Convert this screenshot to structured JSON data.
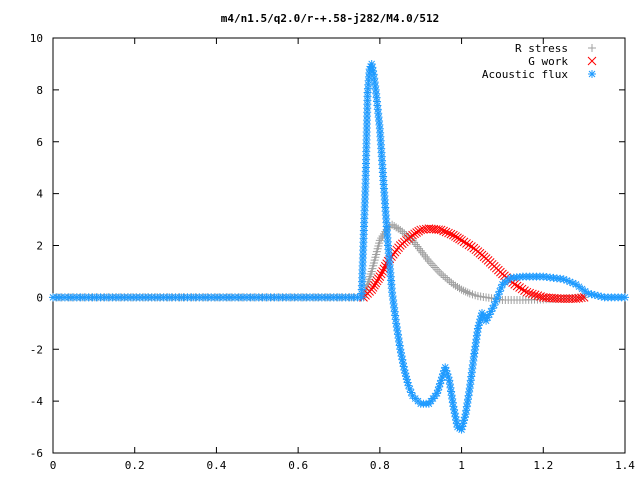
{
  "chart_data": {
    "type": "scatter",
    "title": "m4/n1.5/q2.0/r-+.58-j282/M4.0/512",
    "xlabel": "",
    "ylabel": "",
    "xlim": [
      0,
      1.4
    ],
    "ylim": [
      -6,
      10
    ],
    "x_ticks": [
      "0",
      "0.2",
      "0.4",
      "0.6",
      "0.8",
      "1",
      "1.2",
      "1.4"
    ],
    "y_ticks": [
      "10",
      "8",
      "6",
      "4",
      "2",
      "0",
      "-2",
      "-4",
      "-6"
    ],
    "legend_position": "top-right",
    "series": [
      {
        "name": "R stress",
        "marker": "plus",
        "color": "#a0a0a0",
        "x": [
          0.0,
          0.76,
          0.78,
          0.8,
          0.82,
          0.83,
          0.85,
          0.88,
          0.9,
          0.92,
          0.95,
          0.98,
          1.0,
          1.02,
          1.04,
          1.06,
          1.08,
          1.1,
          1.15,
          1.2,
          1.25,
          1.3
        ],
        "y": [
          0.0,
          0.0,
          1.0,
          2.2,
          2.7,
          2.8,
          2.6,
          2.2,
          1.8,
          1.4,
          0.9,
          0.5,
          0.3,
          0.15,
          0.05,
          0.0,
          -0.05,
          -0.1,
          -0.1,
          -0.08,
          -0.04,
          0.0
        ]
      },
      {
        "name": "G work",
        "marker": "cross",
        "color": "#ff0000",
        "x": [
          0.76,
          0.78,
          0.8,
          0.82,
          0.85,
          0.88,
          0.9,
          0.92,
          0.95,
          0.98,
          1.0,
          1.03,
          1.06,
          1.1,
          1.13,
          1.16,
          1.2,
          1.24,
          1.28,
          1.3
        ],
        "y": [
          0.0,
          0.3,
          0.8,
          1.4,
          2.0,
          2.4,
          2.6,
          2.65,
          2.6,
          2.4,
          2.2,
          1.9,
          1.5,
          0.9,
          0.5,
          0.2,
          0.0,
          -0.05,
          -0.05,
          0.0
        ]
      },
      {
        "name": "Acoustic flux",
        "marker": "star",
        "color": "#1f9bff",
        "x": [
          0.0,
          0.755,
          0.765,
          0.77,
          0.775,
          0.78,
          0.785,
          0.79,
          0.8,
          0.81,
          0.82,
          0.83,
          0.84,
          0.85,
          0.86,
          0.87,
          0.88,
          0.9,
          0.92,
          0.94,
          0.95,
          0.96,
          0.97,
          0.98,
          0.99,
          1.0,
          1.01,
          1.02,
          1.03,
          1.04,
          1.05,
          1.06,
          1.08,
          1.1,
          1.12,
          1.15,
          1.2,
          1.25,
          1.28,
          1.31,
          1.35,
          1.4
        ],
        "y": [
          0.0,
          0.0,
          4.4,
          7.9,
          8.8,
          9.0,
          8.6,
          8.0,
          6.5,
          4.2,
          2.0,
          0.2,
          -1.0,
          -2.0,
          -2.8,
          -3.4,
          -3.8,
          -4.1,
          -4.1,
          -3.7,
          -3.2,
          -2.7,
          -3.2,
          -4.2,
          -5.0,
          -5.1,
          -4.5,
          -3.5,
          -2.3,
          -1.2,
          -0.6,
          -0.9,
          -0.3,
          0.5,
          0.75,
          0.8,
          0.8,
          0.7,
          0.5,
          0.15,
          0.0,
          0.0
        ]
      }
    ]
  }
}
